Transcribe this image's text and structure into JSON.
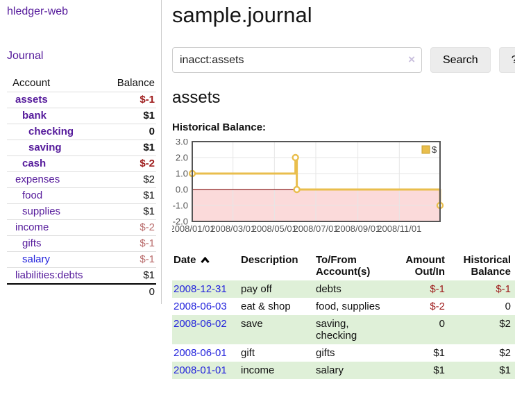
{
  "colors": {
    "link_purple": "#551a9b",
    "link_blue": "#2323dc",
    "negative_dark": "#9e1b1b",
    "negative_muted": "#b96c6c",
    "row_green": "#dff0d8",
    "series_gold": "#e9be4c",
    "axis_gray": "#545454",
    "negative_region_pink": "#fbdada",
    "zero_line_red": "#8b1d1d"
  },
  "sidebar": {
    "brand": "hledger-web",
    "nav_journal": "Journal",
    "accounts": {
      "col_account": "Account",
      "col_balance": "Balance",
      "rows": [
        {
          "name": "assets",
          "balance": "$-1"
        },
        {
          "name": "bank",
          "balance": "$1"
        },
        {
          "name": "checking",
          "balance": "0"
        },
        {
          "name": "saving",
          "balance": "$1"
        },
        {
          "name": "cash",
          "balance": "$-2"
        },
        {
          "name": "expenses",
          "balance": "$2"
        },
        {
          "name": "food",
          "balance": "$1"
        },
        {
          "name": "supplies",
          "balance": "$1"
        },
        {
          "name": "income",
          "balance": "$-2"
        },
        {
          "name": "gifts",
          "balance": "$-1"
        },
        {
          "name": "salary",
          "balance": "$-1"
        },
        {
          "name": "liabilities:debts",
          "balance": "$1"
        }
      ],
      "total": "0"
    }
  },
  "main": {
    "title": "sample.journal",
    "search": {
      "value": "inacct:assets",
      "clear": "×",
      "button": "Search",
      "help": "?"
    },
    "heading": "assets",
    "chart_title": "Historical Balance:",
    "register": {
      "headers": {
        "date": "Date",
        "description": "Description",
        "accounts": "To/From Account(s)",
        "amount": "Amount Out/In",
        "balance": "Historical Balance"
      },
      "rows": [
        {
          "date": "2008-12-31",
          "description": "pay off",
          "accounts": "debts",
          "amount": "$-1",
          "balance": "$-1"
        },
        {
          "date": "2008-06-03",
          "description": "eat & shop",
          "accounts": "food, supplies",
          "amount": "$-2",
          "balance": "0"
        },
        {
          "date": "2008-06-02",
          "description": "save",
          "accounts": "saving, checking",
          "amount": "0",
          "balance": "$2"
        },
        {
          "date": "2008-06-01",
          "description": "gift",
          "accounts": "gifts",
          "amount": "$1",
          "balance": "$2"
        },
        {
          "date": "2008-01-01",
          "description": "income",
          "accounts": "salary",
          "amount": "$1",
          "balance": "$1"
        }
      ]
    }
  },
  "chart_data": {
    "type": "line",
    "step": true,
    "title": "Historical Balance:",
    "series": [
      {
        "name": "$",
        "color": "#e9be4c",
        "points": [
          [
            "2008-01-01",
            1
          ],
          [
            "2008-06-01",
            2
          ],
          [
            "2008-06-03",
            0
          ],
          [
            "2008-12-31",
            -1
          ]
        ]
      }
    ],
    "x_range": [
      "2008-01-01",
      "2008-12-31"
    ],
    "x_ticks": [
      "2008/01/01",
      "2008/03/01",
      "2008/05/01",
      "2008/07/01",
      "2008/09/01",
      "2008/11/01"
    ],
    "y_ticks": [
      "3.0",
      "2.0",
      "1.0",
      "0.0",
      "-1.0",
      "-2.0"
    ],
    "ylim": [
      -2,
      3
    ],
    "grid": true,
    "legend_position": "top-right",
    "legend_label": "$",
    "negative_region_fill": "#fbdada",
    "zero_line_color": "#8b1d1d"
  }
}
